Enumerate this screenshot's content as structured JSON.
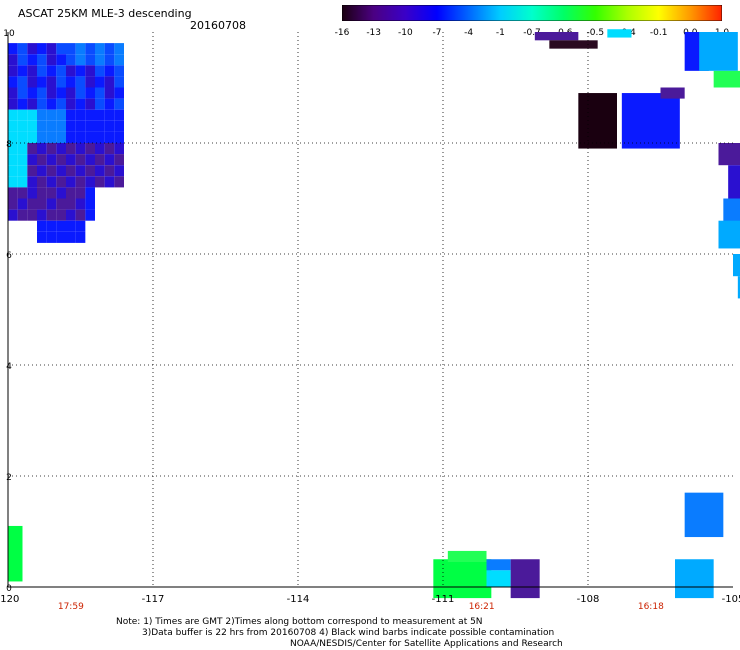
{
  "header": {
    "title": "ASCAT 25KM MLE-3 descending",
    "date": "20160708"
  },
  "colorbar": {
    "labels": [
      "-16",
      "-13",
      "-10",
      "-7",
      "-4",
      "-1",
      "-0.7",
      "-0.6",
      "-0.5",
      "-0.4",
      "-0.1",
      "0.0",
      "1.0"
    ],
    "stops": [
      "#1a0010",
      "#4b0082",
      "#3a00c8",
      "#0000ff",
      "#0066ff",
      "#00ccff",
      "#00ffcc",
      "#00ff66",
      "#33ff00",
      "#aaff00",
      "#ffff00",
      "#ff9900",
      "#ff2200"
    ]
  },
  "axes": {
    "x_ticks": [
      "-120",
      "-117",
      "-114",
      "-111",
      "-108",
      "-105"
    ],
    "y_ticks": [
      "0",
      "2",
      "4",
      "6",
      "8",
      "10"
    ],
    "times": [
      "17:59",
      "16:21",
      "16:18"
    ],
    "time_color": "#cc2200"
  },
  "notes": {
    "line1": "Note: 1) Times are GMT 2)Times along bottom correspond to measurement at 5N",
    "line2": "3)Data buffer is 22 hrs from 20160708 4) Black wind barbs indicate possible contamination",
    "line3": "NOAA/NESDIS/Center for Satellite Applications and Research"
  }
}
